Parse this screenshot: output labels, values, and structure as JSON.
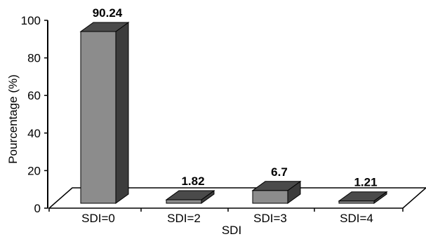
{
  "chart_data": {
    "type": "bar",
    "categories": [
      "SDI=0",
      "SDI=2",
      "SDI=3",
      "SDI=4"
    ],
    "values": [
      90.24,
      1.82,
      6.7,
      1.21
    ],
    "data_labels": [
      "90.24",
      "1.82",
      "6.7",
      "1.21"
    ],
    "xlabel": "SDI",
    "ylabel": "Pourcentage (%)",
    "ylim": [
      0,
      100
    ],
    "yticks": [
      0,
      20,
      40,
      60,
      80,
      100
    ],
    "grid": false,
    "legend": "none",
    "style": "3d",
    "colors": {
      "bar_front": "#8c8c8c",
      "bar_side": "#3c3c3c",
      "bar_top": "#4a4a4a",
      "floor": "#ffffff",
      "axis": "#000000"
    }
  }
}
